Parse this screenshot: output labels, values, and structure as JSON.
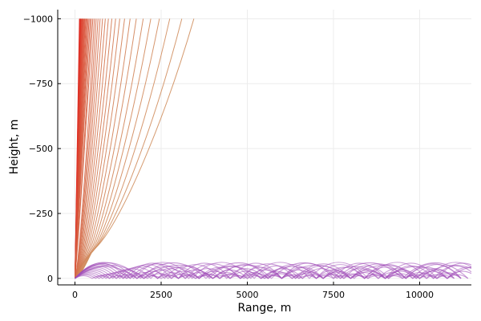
{
  "chart_data": {
    "type": "line",
    "title": "",
    "xlabel": "Range, m",
    "ylabel": "Height, m",
    "xlim": [
      -500,
      11500
    ],
    "ylim": [
      -1035,
      25
    ],
    "y_axis_flipped": true,
    "grid": true,
    "legend": "none",
    "x_ticks": [
      0,
      2500,
      5000,
      7500,
      10000
    ],
    "x_tick_labels": [
      "0",
      "2500",
      "5000",
      "7500",
      "10000"
    ],
    "y_ticks": [
      0,
      -250,
      -500,
      -750,
      -1000
    ],
    "y_tick_labels": [
      "0",
      "−250",
      "−500",
      "−750",
      "−1000"
    ],
    "colors": {
      "escaping_rays_near": "#e0201a",
      "escaping_rays_far": "#d09060",
      "trapped_rays": "#a04fb8",
      "grid": "#ececec",
      "axis": "#000000"
    },
    "series": [
      {
        "group": "escaping rays",
        "description_values": "Rays from source at (0,0) curving to height -1000 m; horizontal range at -1000 m spans 130 to 3450 m",
        "range_at_top_m": [
          130,
          140,
          150,
          160,
          170,
          180,
          195,
          210,
          225,
          240,
          260,
          280,
          300,
          325,
          350,
          380,
          410,
          445,
          480,
          520,
          565,
          615,
          670,
          730,
          800,
          880,
          970,
          1070,
          1180,
          1300,
          1440,
          1600,
          1780,
          1980,
          2200,
          2450,
          2750,
          3100,
          3450
        ],
        "vertex_range_m": [
          0,
          0,
          0,
          0,
          0,
          0,
          0,
          0,
          0,
          0,
          0,
          0,
          0,
          0,
          0,
          0,
          0,
          0,
          0,
          0,
          10,
          20,
          30,
          45,
          60,
          80,
          100,
          125,
          150,
          180,
          215,
          255,
          300,
          350,
          400,
          450,
          490,
          520,
          540
        ],
        "vertex_height_m": [
          0,
          0,
          0,
          0,
          0,
          0,
          0,
          0,
          0,
          0,
          0,
          0,
          0,
          0,
          0,
          0,
          0,
          0,
          0,
          0,
          -5,
          -8,
          -12,
          -16,
          -20,
          -25,
          -30,
          -36,
          -42,
          -48,
          -55,
          -62,
          -70,
          -78,
          -86,
          -94,
          -100,
          -106,
          -110
        ]
      },
      {
        "group": "trapped rays",
        "description_values": "Rays oscillating between 0 and peak height (negative), arching repeatedly out to 11000 m",
        "rays": [
          {
            "arch_length_m": 1500,
            "peak_height_m": -90
          },
          {
            "arch_length_m": 1400,
            "peak_height_m": -82
          },
          {
            "arch_length_m": 1300,
            "peak_height_m": -74
          },
          {
            "arch_length_m": 1200,
            "peak_height_m": -66
          },
          {
            "arch_length_m": 1100,
            "peak_height_m": -58
          },
          {
            "arch_length_m": 1000,
            "peak_height_m": -50
          },
          {
            "arch_length_m": 900,
            "peak_height_m": -42
          },
          {
            "arch_length_m": 800,
            "peak_height_m": -35
          },
          {
            "arch_length_m": 1700,
            "peak_height_m": -95
          },
          {
            "arch_length_m": 1900,
            "peak_height_m": -92
          },
          {
            "arch_length_m": 1600,
            "peak_height_m": -86
          },
          {
            "arch_length_m": 700,
            "peak_height_m": -28
          },
          {
            "arch_length_m": 600,
            "peak_height_m": -22
          },
          {
            "arch_length_m": 500,
            "peak_height_m": -16
          },
          {
            "arch_length_m": 2000,
            "peak_height_m": -78
          },
          {
            "arch_length_m": 1800,
            "peak_height_m": -70
          }
        ],
        "x_end_m": 11000
      }
    ]
  }
}
